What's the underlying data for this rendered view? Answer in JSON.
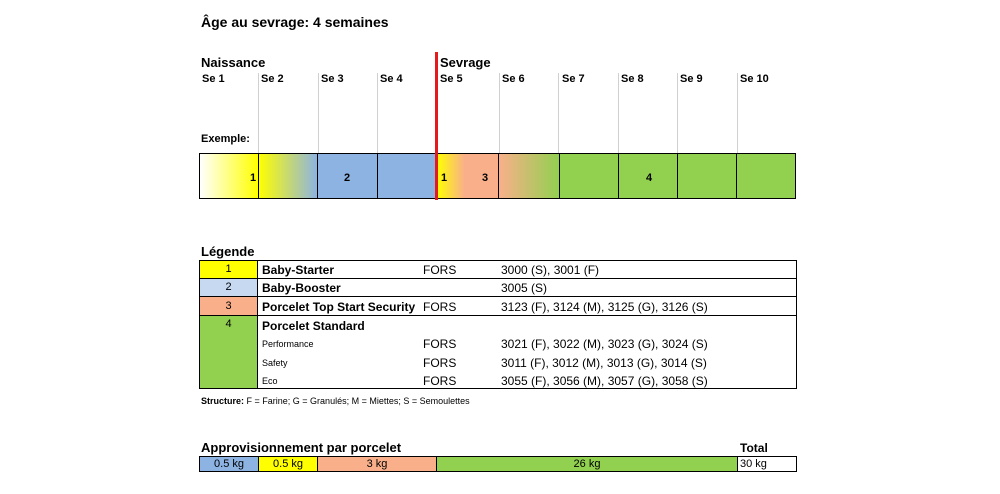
{
  "title": "Âge au sevrage: 4 semaines",
  "phases": {
    "birth": "Naissance",
    "weaning": "Sevrage"
  },
  "weeks": [
    "Se 1",
    "Se 2",
    "Se 3",
    "Se 4",
    "Se 5",
    "Se 6",
    "Se 7",
    "Se 8",
    "Se 9",
    "Se 10"
  ],
  "example_label": "Exemple:",
  "timeline_numbers": {
    "w2": "1",
    "w3_4": "2",
    "w5a": "1",
    "w5b": "3",
    "w7_10": "4"
  },
  "colors": {
    "yellow": "#ffff00",
    "blue": "#8db3e2",
    "salmon": "#f9b08a",
    "green": "#92d050",
    "red": "#e31b1b"
  },
  "legend": {
    "title": "Légende",
    "rows": [
      {
        "num": "1",
        "name": "Baby-Starter",
        "supplier": "FORS",
        "codes": "3000 (S), 3001 (F)"
      },
      {
        "num": "2",
        "name": "Baby-Booster",
        "supplier": "",
        "codes": "3005 (S)"
      },
      {
        "num": "3",
        "name": "Porcelet Top Start Security",
        "supplier": "FORS",
        "codes": "3123 (F), 3124 (M), 3125 (G), 3126 (S)"
      },
      {
        "num": "4",
        "name": "Porcelet Standard",
        "subs": [
          {
            "label": "Performance",
            "supplier": "FORS",
            "codes": "3021 (F), 3022 (M), 3023 (G), 3024 (S)"
          },
          {
            "label": "Safety",
            "supplier": "FORS",
            "codes": "3011 (F), 3012 (M), 3013 (G), 3014 (S)"
          },
          {
            "label": "Eco",
            "supplier": "FORS",
            "codes": "3055 (F), 3056 (M), 3057 (G), 3058 (S)"
          }
        ]
      }
    ]
  },
  "structure": {
    "label": "Structure:",
    "text": "F = Farine; G = Granulés; M = Miettes; S = Semoulettes"
  },
  "supply": {
    "title": "Approvisionnement par porcelet",
    "total_label": "Total",
    "cells": [
      "0.5 kg",
      "0.5 kg",
      "3 kg",
      "26 kg"
    ],
    "total": "30 kg"
  }
}
